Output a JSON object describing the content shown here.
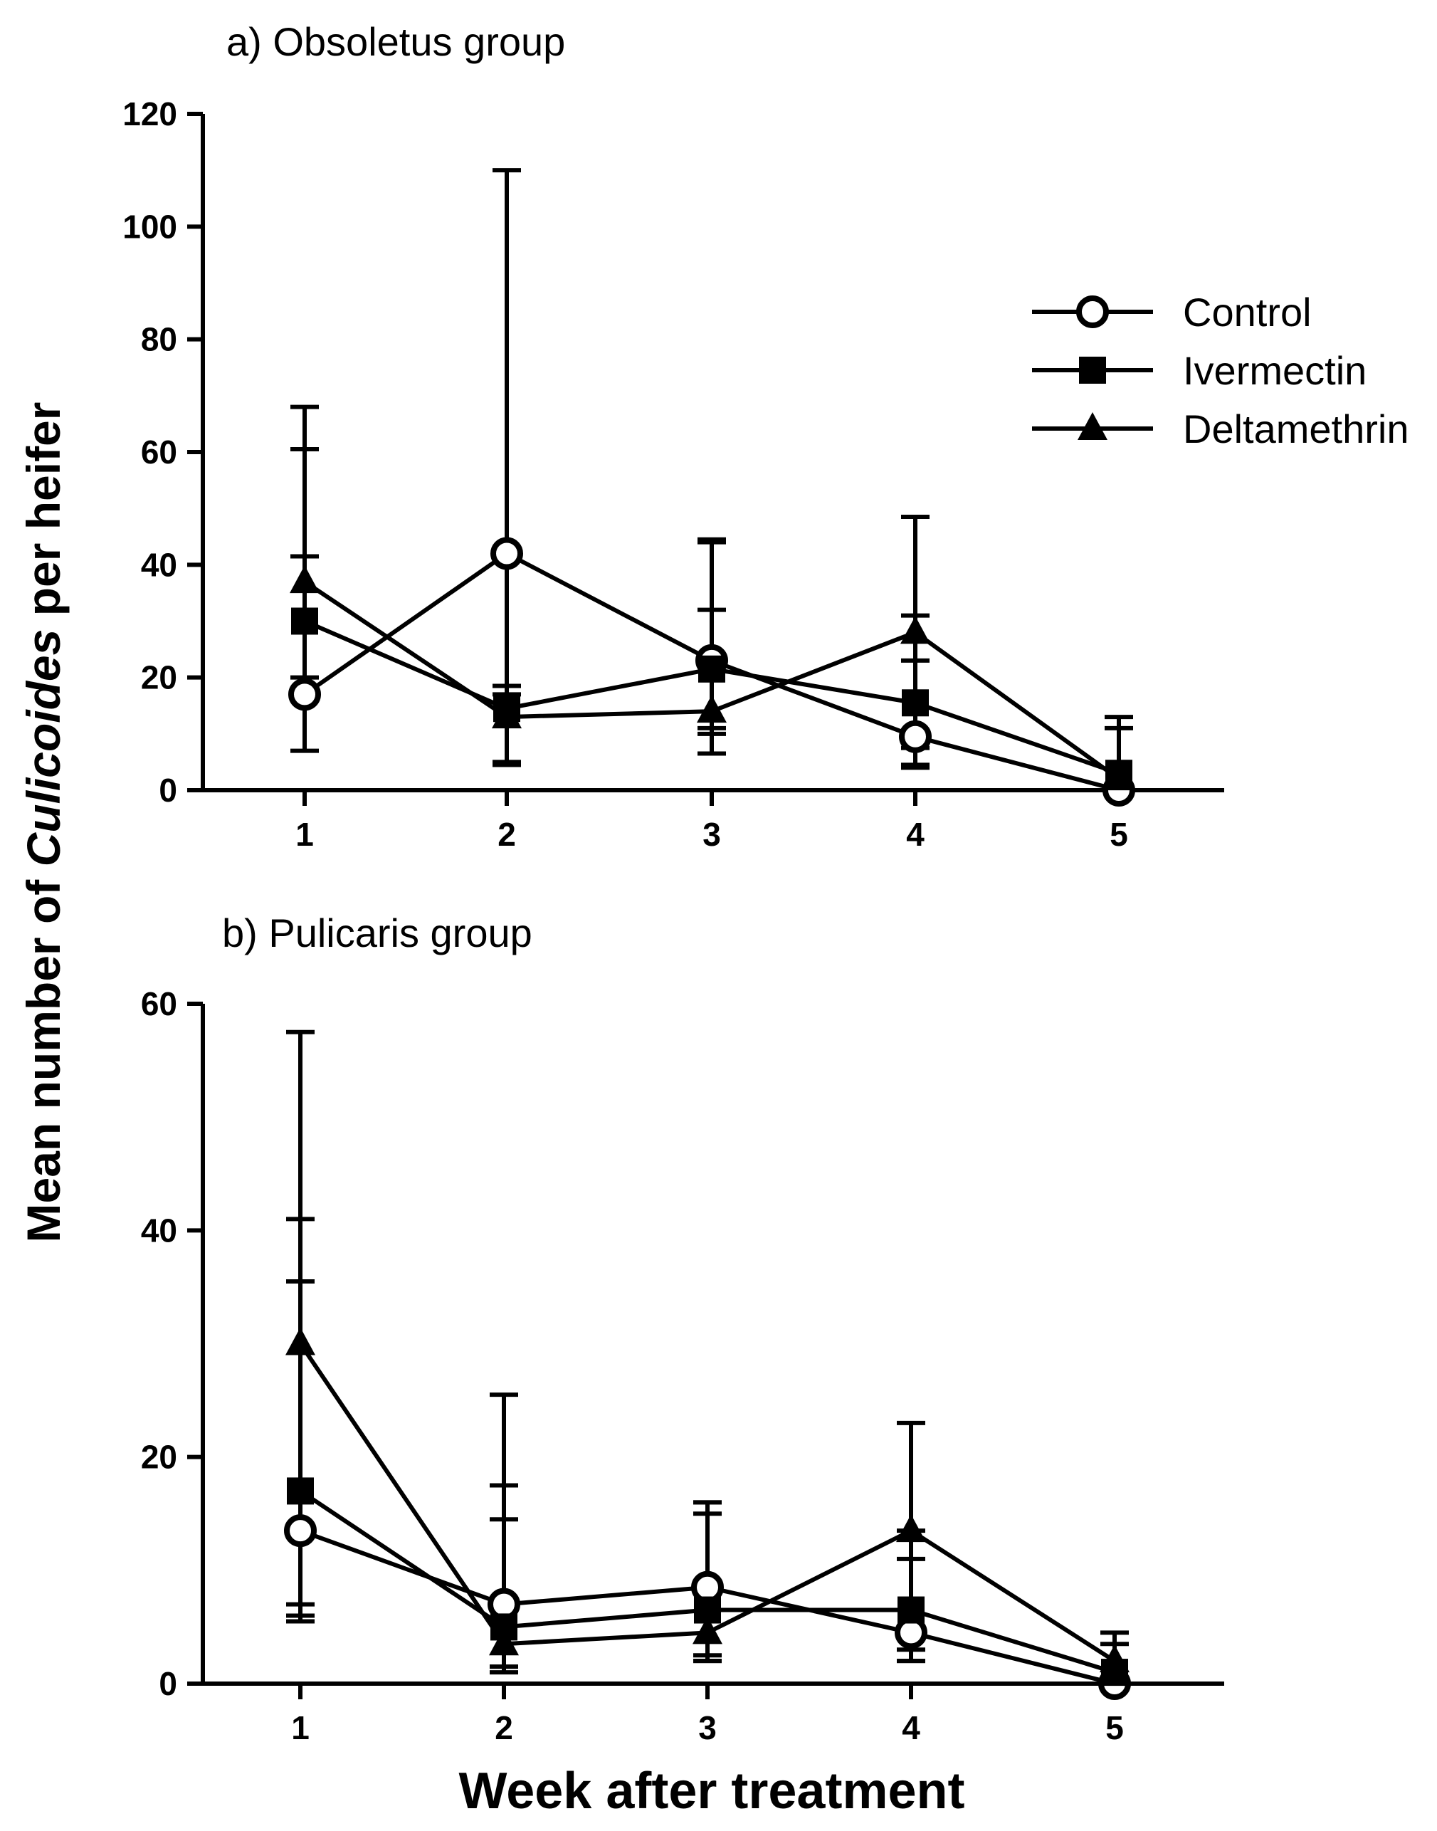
{
  "chart_data": [
    {
      "type": "line",
      "title": "a) Obsoletus group",
      "xlabel": "Week after treatment",
      "ylabel_prefix": "Mean number of ",
      "ylabel_italic": "Culicoides",
      "ylabel_suffix": " per heifer",
      "x": [
        1,
        2,
        3,
        4,
        5
      ],
      "xtick_labels": [
        "1",
        "2",
        "3",
        "4",
        "5"
      ],
      "ylim": [
        0,
        120
      ],
      "yticks": [
        0,
        20,
        40,
        60,
        80,
        100,
        120
      ],
      "grid": false,
      "error_bars": "upper and lower caps",
      "series": [
        {
          "name": "Control",
          "marker": "open-circle",
          "values": [
            17,
            42,
            23,
            9.5,
            0
          ],
          "err_low": [
            7,
            4.5,
            10,
            4,
            0
          ],
          "err_high": [
            41.5,
            110,
            32,
            31,
            0
          ]
        },
        {
          "name": "Ivermectin",
          "marker": "filled-square",
          "values": [
            30,
            14.5,
            21.5,
            15.5,
            3
          ],
          "err_low": [
            20,
            5,
            11,
            4.5,
            0
          ],
          "err_high": [
            60.5,
            18.5,
            44.5,
            23,
            11
          ]
        },
        {
          "name": "Deltamethrin",
          "marker": "filled-triangle",
          "values": [
            37,
            13,
            14,
            28,
            2
          ],
          "err_low": [
            17,
            4.5,
            6.5,
            7.5,
            0
          ],
          "err_high": [
            68,
            17,
            44,
            48.5,
            13
          ]
        }
      ]
    },
    {
      "type": "line",
      "title": "b) Pulicaris group",
      "xlabel": "Week after treatment",
      "x": [
        1,
        2,
        3,
        4,
        5
      ],
      "xtick_labels": [
        "1",
        "2",
        "3",
        "4",
        "5"
      ],
      "ylim": [
        0,
        60
      ],
      "yticks": [
        0,
        20,
        40,
        60
      ],
      "ytick_labels": [
        "0",
        "20",
        "40",
        "60"
      ],
      "grid": false,
      "error_bars": "upper and lower caps",
      "series": [
        {
          "name": "Control",
          "marker": "open-circle",
          "values": [
            13.5,
            7,
            8.5,
            4.5,
            0
          ],
          "err_low": [
            7,
            1.5,
            2,
            2,
            0
          ],
          "err_high": [
            35.5,
            14.5,
            15,
            11,
            0
          ]
        },
        {
          "name": "Ivermectin",
          "marker": "filled-square",
          "values": [
            17,
            5,
            6.5,
            6.5,
            1
          ],
          "err_low": [
            5.5,
            1.5,
            2.5,
            2,
            0
          ],
          "err_high": [
            41,
            17.5,
            16,
            13.5,
            3.5
          ]
        },
        {
          "name": "Deltamethrin",
          "marker": "filled-triangle",
          "values": [
            30,
            3.5,
            4.5,
            13.5,
            2
          ],
          "err_low": [
            6,
            1,
            2,
            3,
            0
          ],
          "err_high": [
            57.5,
            25.5,
            16,
            23,
            4.5
          ]
        }
      ]
    }
  ],
  "legend": {
    "placement": "top-right of panel a",
    "entries": [
      {
        "label": "Control",
        "marker": "open-circle"
      },
      {
        "label": "Ivermectin",
        "marker": "filled-square"
      },
      {
        "label": "Deltamethrin",
        "marker": "filled-triangle"
      }
    ]
  },
  "colors": {
    "line": "#000000",
    "background": "#ffffff"
  }
}
